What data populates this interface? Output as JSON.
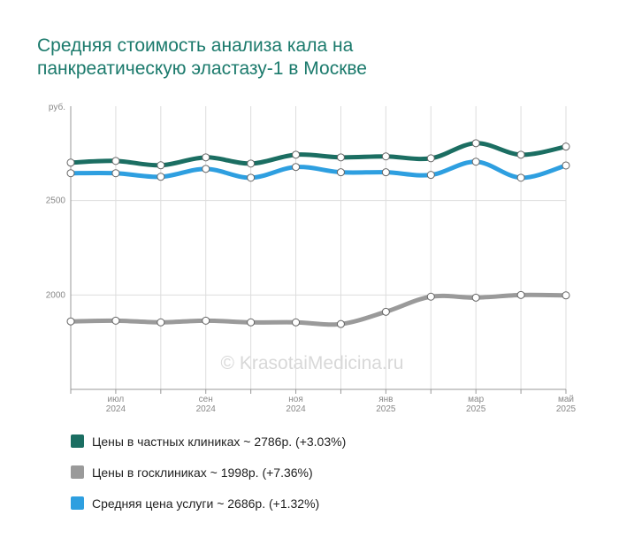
{
  "chart_data": {
    "type": "line",
    "title": [
      "Средняя стоимость анализа кала на",
      "панкреатическую эластазу-1 в Москве"
    ],
    "y_label": "руб.",
    "watermark": "© KrasotaiMedicina.ru",
    "categories": [
      null,
      "июл 2024",
      null,
      "сен 2024",
      null,
      "ноя 2024",
      null,
      "янв 2025",
      null,
      "мар 2025",
      null,
      "май 2025"
    ],
    "ylim": [
      1500,
      3000
    ],
    "yticks": [
      2000,
      2500
    ],
    "grid": true,
    "series": [
      {
        "name": "Цены в частных клиниках ~ 2786р. (+3.03%)",
        "color": "#1b6e62",
        "values": [
          2701,
          2710,
          2687,
          2729,
          2696,
          2743,
          2729,
          2734,
          2724,
          2804,
          2743,
          2786
        ]
      },
      {
        "name": "Цены в госклиниках ~ 1998р. (+7.36%)",
        "color": "#9a9a9a",
        "values": [
          1860,
          1864,
          1855,
          1864,
          1855,
          1855,
          1846,
          1911,
          1991,
          1986,
          2000,
          1998
        ]
      },
      {
        "name": "Средняя цена услуги ~ 2686р. (+1.32%)",
        "color": "#2e9fe0",
        "values": [
          2645,
          2645,
          2626,
          2668,
          2621,
          2678,
          2650,
          2650,
          2636,
          2706,
          2621,
          2686
        ]
      }
    ]
  }
}
